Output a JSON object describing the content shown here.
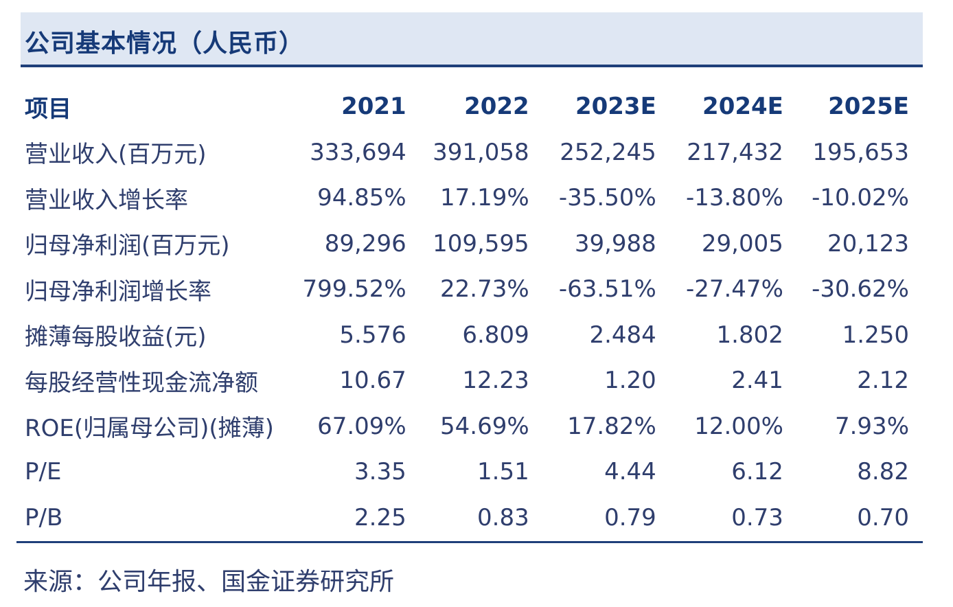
{
  "title": "公司基本情况（人民币）",
  "table": {
    "headers": [
      "项目",
      "2021",
      "2022",
      "2023E",
      "2024E",
      "2025E"
    ],
    "rows": [
      [
        "营业收入(百万元)",
        "333,694",
        "391,058",
        "252,245",
        "217,432",
        "195,653"
      ],
      [
        "营业收入增长率",
        "94.85%",
        "17.19%",
        "-35.50%",
        "-13.80%",
        "-10.02%"
      ],
      [
        "归母净利润(百万元)",
        "89,296",
        "109,595",
        "39,988",
        "29,005",
        "20,123"
      ],
      [
        "归母净利润增长率",
        "799.52%",
        "22.73%",
        "-63.51%",
        "-27.47%",
        "-30.62%"
      ],
      [
        "摊薄每股收益(元)",
        "5.576",
        "6.809",
        "2.484",
        "1.802",
        "1.250"
      ],
      [
        "每股经营性现金流净额",
        "10.67",
        "12.23",
        "1.20",
        "2.41",
        "2.12"
      ],
      [
        "ROE(归属母公司)(摊薄)",
        "67.09%",
        "54.69%",
        "17.82%",
        "12.00%",
        "7.93%"
      ],
      [
        "P/E",
        "3.35",
        "1.51",
        "4.44",
        "6.12",
        "8.82"
      ],
      [
        "P/B",
        "2.25",
        "0.83",
        "0.79",
        "0.73",
        "0.70"
      ]
    ]
  },
  "source": "来源：公司年报、国金证券研究所",
  "colors": {
    "title_background": "#dfe7f3",
    "title_text": "#163a78",
    "rule": "#1f3f7a",
    "body_text": "#2f3e6d"
  }
}
